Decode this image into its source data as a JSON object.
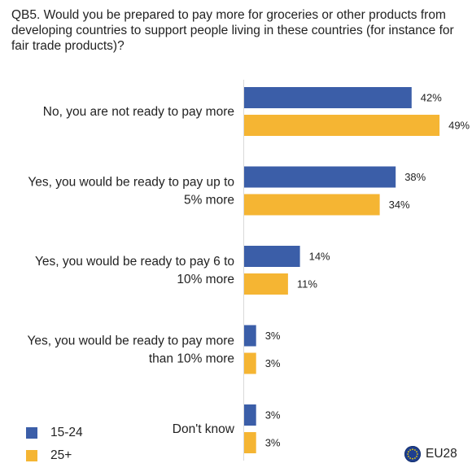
{
  "question": "QB5. Would you be prepared to pay more for groceries or other products from developing countries to support people living in these countries (for instance for fair trade products)?",
  "legend": {
    "items": [
      {
        "label": "15-24",
        "color": "#3b5ea8"
      },
      {
        "label": "25+",
        "color": "#f5b533"
      }
    ]
  },
  "badge": {
    "label": "EU28",
    "icon": "eu-flag-icon"
  },
  "chart_data": {
    "type": "bar",
    "orientation": "horizontal",
    "value_suffix": "%",
    "categories": [
      [
        "No, you are not ready to pay more"
      ],
      [
        "Yes, you would be ready to pay up to",
        "5% more"
      ],
      [
        "Yes, you would be ready to pay 6 to",
        "10% more"
      ],
      [
        "Yes, you would be ready to pay more",
        "than 10% more"
      ],
      [
        "Don't know"
      ]
    ],
    "series": [
      {
        "name": "15-24",
        "color": "#3b5ea8",
        "values": [
          42,
          38,
          14,
          3,
          3
        ]
      },
      {
        "name": "25+",
        "color": "#f5b533",
        "values": [
          49,
          34,
          11,
          3,
          3
        ]
      }
    ],
    "xlim": [
      0,
      100
    ],
    "grid": false,
    "legend_position": "bottom-left"
  }
}
